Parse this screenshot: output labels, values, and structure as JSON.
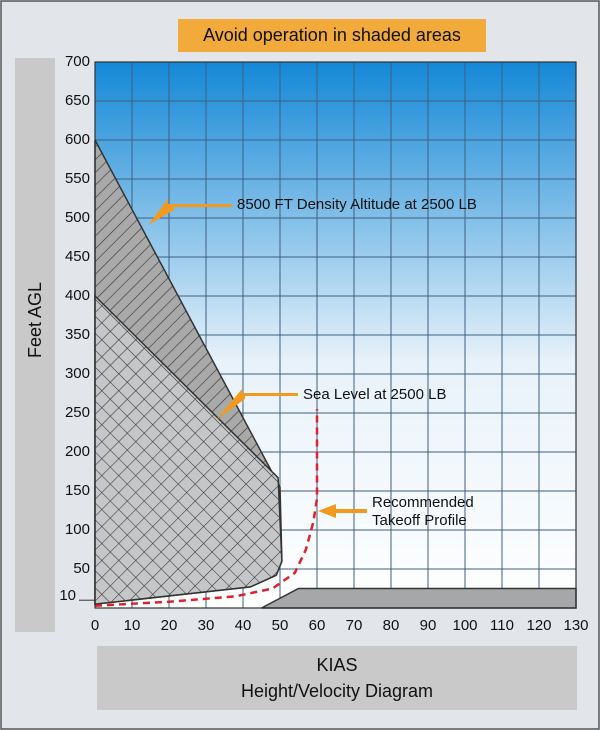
{
  "chart_data": {
    "type": "area",
    "title": "Avoid operation in shaded areas",
    "subtitle": "Height/Velocity Diagram",
    "x_label": "KIAS",
    "y_label": "Feet AGL",
    "xlim": [
      0,
      130
    ],
    "ylim": [
      0,
      700
    ],
    "xticks": [
      0,
      10,
      20,
      30,
      40,
      50,
      60,
      70,
      80,
      90,
      100,
      110,
      120,
      130
    ],
    "yticks": [
      50,
      100,
      150,
      200,
      250,
      300,
      350,
      400,
      450,
      500,
      550,
      600,
      650,
      700
    ],
    "extra_yticks": [
      10
    ],
    "grid": true,
    "series": [
      {
        "x": [
          0,
          50,
          50.5,
          49,
          42,
          0
        ],
        "values": [
          600,
          155,
          60,
          42,
          27,
          5
        ],
        "color": "#a9a9a9",
        "pattern": "hatch"
      },
      {
        "x": [
          0,
          49.5,
          50.5,
          49,
          42,
          0
        ],
        "values": [
          400,
          167,
          60,
          42,
          27,
          5
        ],
        "color": "#c4c6c8",
        "pattern": "crosshatch"
      },
      {
        "x": [
          45,
          55,
          130,
          130
        ],
        "values": [
          0,
          25,
          25,
          0
        ],
        "color": "#a5a7a9",
        "pattern": "solid"
      },
      {
        "x": [
          0,
          20,
          38,
          48,
          54,
          57,
          59,
          60,
          60
        ],
        "values": [
          3,
          8,
          15,
          25,
          45,
          75,
          110,
          140,
          255
        ],
        "color": "#e0202a",
        "pattern": "dashed"
      }
    ],
    "annotations": [
      "8500 FT Density Altitude at 2500 LB",
      "Sea Level at 2500 LB",
      "Recommended",
      "Takeoff Profile"
    ]
  }
}
